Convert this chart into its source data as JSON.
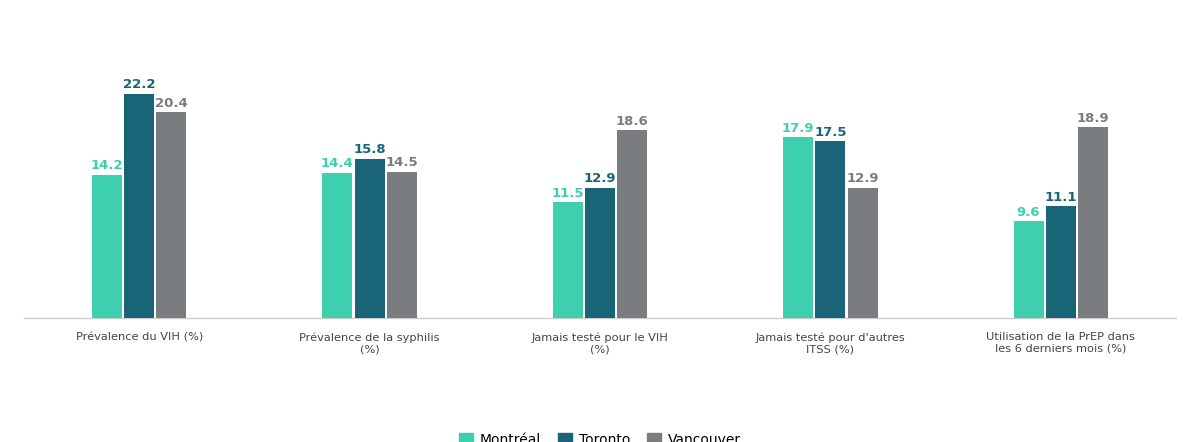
{
  "categories": [
    "Prévalence du VIH (%)",
    "Prévalence de la syphilis\n(%)",
    "Jamais testé pour le VIH\n(%)",
    "Jamais testé pour d'autres\nITSS (%)",
    "Utilisation de la PrEP dans\nles 6 derniers mois (%)"
  ],
  "series": {
    "Montréal": [
      14.2,
      14.4,
      11.5,
      17.9,
      9.6
    ],
    "Toronto": [
      22.2,
      15.8,
      12.9,
      17.5,
      11.1
    ],
    "Vancouver": [
      20.4,
      14.5,
      18.6,
      12.9,
      18.9
    ]
  },
  "colors": {
    "Montréal": "#3ecfae",
    "Toronto": "#1a6478",
    "Vancouver": "#7a7d80"
  },
  "bar_width": 0.13,
  "bar_spacing": 0.14,
  "ylim": [
    0,
    28
  ],
  "axis_label_fontsize": 8.2,
  "legend_fontsize": 10,
  "value_fontsize": 9.5,
  "background_color": "#ffffff",
  "spine_color": "#cccccc"
}
